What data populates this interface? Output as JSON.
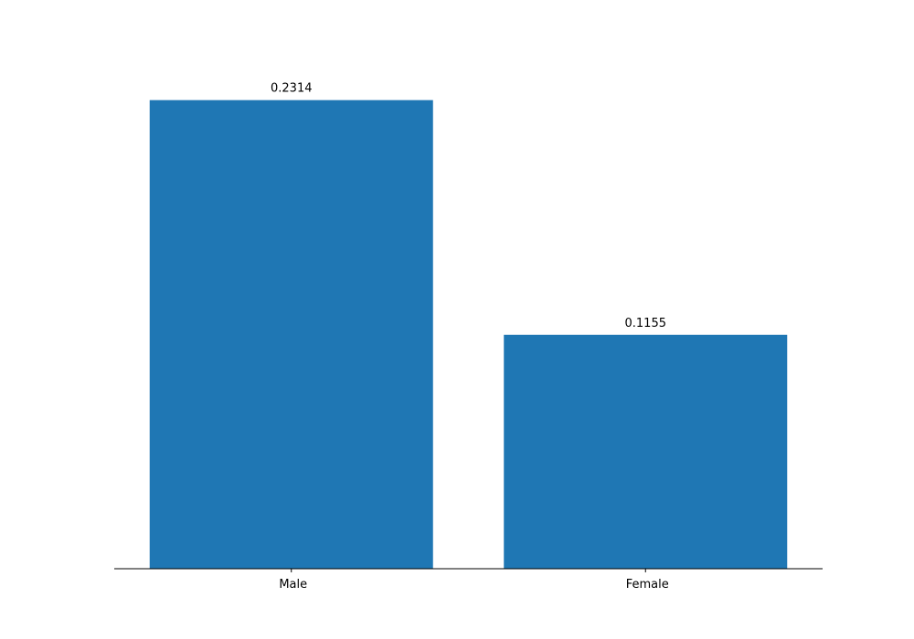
{
  "chart_data": {
    "type": "bar",
    "categories": [
      "Male",
      "Female"
    ],
    "values": [
      0.2314,
      0.1155
    ],
    "data_labels": [
      "0.2314",
      "0.1155"
    ],
    "title": "",
    "xlabel": "",
    "ylabel": "",
    "y_axis_visible": false,
    "grid": false,
    "bar_color": "#1f77b4"
  }
}
